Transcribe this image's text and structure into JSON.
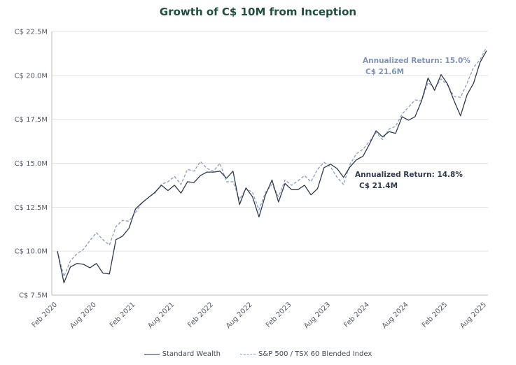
{
  "chart_data": {
    "type": "line",
    "title": "Growth of C$ 10M from Inception",
    "y_tick_labels": [
      "C$ 7.5M",
      "C$ 10.0M",
      "C$ 12.5M",
      "C$ 15.0M",
      "C$ 17.5M",
      "C$ 20.0M",
      "C$ 22.5M"
    ],
    "y_ticks": [
      7.5,
      10.0,
      12.5,
      15.0,
      17.5,
      20.0,
      22.5
    ],
    "ylim": [
      7.5,
      22.5
    ],
    "x_tick_labels": [
      "Feb 2020",
      "Aug 2020",
      "Feb 2021",
      "Aug 2021",
      "Feb 2022",
      "Aug 2022",
      "Feb 2023",
      "Aug 2023",
      "Feb 2024",
      "Aug 2024",
      "Feb 2025",
      "Aug 2025"
    ],
    "x_ticks": [
      "2020-02",
      "2020-08",
      "2021-02",
      "2021-08",
      "2022-02",
      "2022-08",
      "2023-02",
      "2023-08",
      "2024-02",
      "2024-08",
      "2025-02",
      "2025-08"
    ],
    "xlim": [
      "2020-02",
      "2025-08"
    ],
    "grid": "horizontal",
    "legend_position": "bottom",
    "x": [
      "2020-02",
      "2020-03",
      "2020-04",
      "2020-05",
      "2020-06",
      "2020-07",
      "2020-08",
      "2020-09",
      "2020-10",
      "2020-11",
      "2020-12",
      "2021-01",
      "2021-02",
      "2021-03",
      "2021-04",
      "2021-05",
      "2021-06",
      "2021-07",
      "2021-08",
      "2021-09",
      "2021-10",
      "2021-11",
      "2021-12",
      "2022-01",
      "2022-02",
      "2022-03",
      "2022-04",
      "2022-05",
      "2022-06",
      "2022-07",
      "2022-08",
      "2022-09",
      "2022-10",
      "2022-11",
      "2022-12",
      "2023-01",
      "2023-02",
      "2023-03",
      "2023-04",
      "2023-05",
      "2023-06",
      "2023-07",
      "2023-08",
      "2023-09",
      "2023-10",
      "2023-11",
      "2023-12",
      "2024-01",
      "2024-02",
      "2024-03",
      "2024-04",
      "2024-05",
      "2024-06",
      "2024-07",
      "2024-08",
      "2024-09",
      "2024-10",
      "2024-11",
      "2024-12",
      "2025-01",
      "2025-02",
      "2025-03",
      "2025-04",
      "2025-05",
      "2025-06",
      "2025-07",
      "2025-08"
    ],
    "series": [
      {
        "name": "Standard Wealth",
        "color": "#2f3a4d",
        "style": "solid",
        "values": [
          10.0,
          8.2,
          9.1,
          9.3,
          9.25,
          9.05,
          9.3,
          8.75,
          8.7,
          10.65,
          10.85,
          11.3,
          12.4,
          12.75,
          13.05,
          13.35,
          13.75,
          13.45,
          13.75,
          13.3,
          13.95,
          13.9,
          14.3,
          14.5,
          14.5,
          14.55,
          14.15,
          14.55,
          12.65,
          13.6,
          13.1,
          11.95,
          13.2,
          14.05,
          12.8,
          13.85,
          13.5,
          13.5,
          13.75,
          13.2,
          13.55,
          14.75,
          14.95,
          14.7,
          14.2,
          14.8,
          15.2,
          15.4,
          16.1,
          16.85,
          16.5,
          16.8,
          16.7,
          17.65,
          17.45,
          17.65,
          18.55,
          19.85,
          19.15,
          20.05,
          19.5,
          18.55,
          17.7,
          18.9,
          19.55,
          20.75,
          21.4
        ]
      },
      {
        "name": "S&P 500 / TSX 60 Blended Index",
        "color": "#8a9cbf",
        "style": "dashed",
        "values": [
          10.0,
          8.55,
          9.45,
          9.85,
          10.1,
          10.6,
          11.05,
          10.65,
          10.35,
          11.4,
          11.75,
          11.7,
          12.2,
          12.75,
          13.05,
          13.3,
          13.8,
          13.95,
          14.25,
          13.8,
          14.65,
          14.55,
          15.1,
          14.7,
          14.55,
          15.0,
          13.95,
          13.95,
          12.95,
          13.55,
          13.35,
          12.35,
          13.35,
          13.8,
          13.1,
          14.05,
          13.75,
          14.0,
          14.3,
          13.95,
          14.65,
          15.05,
          14.8,
          14.2,
          13.8,
          14.95,
          15.55,
          15.8,
          16.25,
          16.75,
          16.35,
          16.95,
          17.1,
          17.8,
          18.2,
          18.6,
          18.55,
          19.6,
          19.25,
          19.8,
          19.45,
          18.8,
          18.75,
          19.55,
          20.45,
          20.9,
          21.6
        ]
      }
    ],
    "annotations": [
      {
        "text": "Annualized Return: 15.0%",
        "color": "#7f93b8"
      },
      {
        "text": "C$ 21.6M",
        "color": "#7f93b8"
      },
      {
        "text": "Annualized Return: 14.8%",
        "color": "#2f3a4d"
      },
      {
        "text": "C$ 21.4M",
        "color": "#2f3a4d"
      }
    ],
    "colors": {
      "title": "#1f4f3f",
      "grid": "#e3e3e3",
      "axis": "#bfbfbf"
    }
  }
}
